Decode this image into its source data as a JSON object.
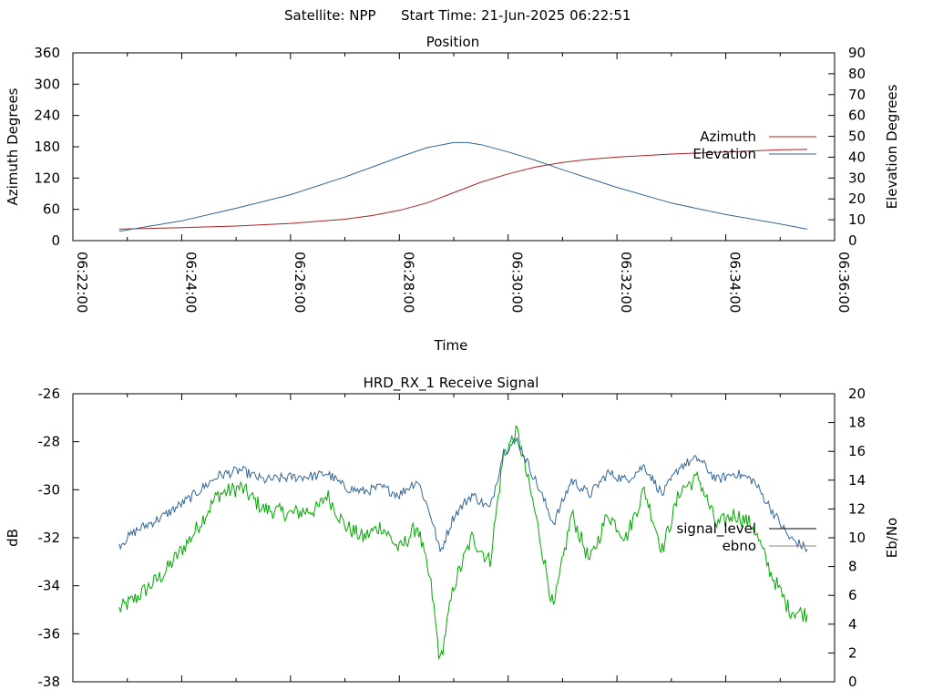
{
  "header": {
    "satellite_label": "Satellite: NPP",
    "start_time_label": "Start Time: 21-Jun-2025 06:22:51"
  },
  "chart_data": [
    {
      "type": "line",
      "title": "Position",
      "xlabel": "Time",
      "ylabel": "Azimuth Degrees",
      "y2label": "Elevation Degrees",
      "xlim": [
        "06:22:00",
        "06:36:00"
      ],
      "x_ticks": [
        "06:22:00",
        "06:24:00",
        "06:26:00",
        "06:28:00",
        "06:30:00",
        "06:32:00",
        "06:34:00",
        "06:36:00"
      ],
      "ylim": [
        0,
        360
      ],
      "y_ticks": [
        0,
        60,
        120,
        180,
        240,
        300,
        360
      ],
      "y2lim": [
        0,
        90
      ],
      "y2_ticks": [
        0,
        10,
        20,
        30,
        40,
        50,
        60,
        70,
        80,
        90
      ],
      "legend": "right",
      "grid": false,
      "series": [
        {
          "name": "Azimuth",
          "axis": "y",
          "color": "#aa2222",
          "x": [
            "06:22:51",
            "06:24:00",
            "06:25:00",
            "06:26:00",
            "06:27:00",
            "06:27:30",
            "06:28:00",
            "06:28:30",
            "06:29:00",
            "06:29:30",
            "06:30:00",
            "06:30:30",
            "06:31:00",
            "06:31:30",
            "06:32:00",
            "06:33:00",
            "06:34:00",
            "06:35:00",
            "06:35:30"
          ],
          "values": [
            22,
            25,
            28,
            33,
            41,
            48,
            58,
            72,
            92,
            112,
            128,
            141,
            150,
            156,
            160,
            166,
            170,
            174,
            175
          ]
        },
        {
          "name": "Elevation",
          "axis": "y2",
          "color": "#336699",
          "x": [
            "06:22:51",
            "06:24:00",
            "06:25:00",
            "06:26:00",
            "06:27:00",
            "06:28:00",
            "06:28:30",
            "06:29:00",
            "06:29:15",
            "06:29:30",
            "06:30:00",
            "06:30:30",
            "06:31:00",
            "06:32:00",
            "06:33:00",
            "06:34:00",
            "06:35:00",
            "06:35:30"
          ],
          "values": [
            4.5,
            9.5,
            15.5,
            22,
            30.5,
            40,
            44.5,
            47,
            47,
            46,
            42.5,
            38.5,
            34,
            25.5,
            18,
            12.5,
            8,
            5.5
          ]
        }
      ]
    },
    {
      "type": "line",
      "title": "HRD_RX_1 Receive Signal",
      "ylabel": "dB",
      "y2label": "Eb/No",
      "xlim": [
        "06:22:00",
        "06:36:00"
      ],
      "ylim": [
        -38,
        -26
      ],
      "y_ticks": [
        -38,
        -36,
        -34,
        -32,
        -30,
        -28,
        -26
      ],
      "y2lim": [
        0,
        20
      ],
      "y2_ticks": [
        0,
        2,
        4,
        6,
        8,
        10,
        12,
        14,
        16,
        18,
        20
      ],
      "legend": "right",
      "grid": false,
      "series": [
        {
          "name": "signal_level",
          "axis": "y",
          "color": "#00aa00",
          "x": [
            "06:22:51",
            "06:23:10",
            "06:23:40",
            "06:24:10",
            "06:24:40",
            "06:25:05",
            "06:25:30",
            "06:26:00",
            "06:26:30",
            "06:26:40",
            "06:27:00",
            "06:27:20",
            "06:27:40",
            "06:28:00",
            "06:28:20",
            "06:28:35",
            "06:28:45",
            "06:29:00",
            "06:29:20",
            "06:29:40",
            "06:29:55",
            "06:30:10",
            "06:30:30",
            "06:30:50",
            "06:31:10",
            "06:31:30",
            "06:31:50",
            "06:32:10",
            "06:32:30",
            "06:32:50",
            "06:33:10",
            "06:33:30",
            "06:33:50",
            "06:34:10",
            "06:34:30",
            "06:34:50",
            "06:35:10",
            "06:35:30"
          ],
          "values": [
            -35.0,
            -34.5,
            -33.5,
            -32.0,
            -30.2,
            -29.9,
            -30.8,
            -31.0,
            -30.8,
            -30.2,
            -31.5,
            -32.0,
            -31.5,
            -32.5,
            -31.5,
            -34.0,
            -37.2,
            -34.0,
            -32.0,
            -33.0,
            -28.5,
            -27.6,
            -31.0,
            -35.0,
            -31.0,
            -33.0,
            -31.0,
            -32.0,
            -30.0,
            -32.5,
            -30.0,
            -29.5,
            -31.5,
            -31.0,
            -31.5,
            -33.5,
            -35.0,
            -35.2
          ]
        },
        {
          "name": "ebno",
          "axis": "y2",
          "color": "#336699",
          "x": [
            "06:22:51",
            "06:23:10",
            "06:23:40",
            "06:24:10",
            "06:24:40",
            "06:25:05",
            "06:25:30",
            "06:26:00",
            "06:26:30",
            "06:26:40",
            "06:27:00",
            "06:27:20",
            "06:27:40",
            "06:28:00",
            "06:28:20",
            "06:28:35",
            "06:28:45",
            "06:29:00",
            "06:29:20",
            "06:29:40",
            "06:29:55",
            "06:30:10",
            "06:30:30",
            "06:30:50",
            "06:31:10",
            "06:31:30",
            "06:31:50",
            "06:32:10",
            "06:32:30",
            "06:32:50",
            "06:33:10",
            "06:33:30",
            "06:33:50",
            "06:34:10",
            "06:34:30",
            "06:34:50",
            "06:35:10",
            "06:35:30"
          ],
          "values": [
            9.5,
            10.5,
            11.5,
            12.8,
            14.3,
            14.7,
            14.0,
            14.2,
            14.3,
            14.5,
            13.5,
            13.2,
            13.5,
            13.0,
            14.0,
            11.5,
            9.0,
            11.5,
            13.0,
            12.0,
            16.0,
            16.8,
            14.0,
            11.0,
            14.0,
            13.0,
            14.5,
            14.0,
            15.0,
            13.0,
            15.0,
            15.5,
            14.0,
            14.5,
            14.0,
            12.0,
            10.0,
            9.2
          ]
        }
      ]
    }
  ]
}
